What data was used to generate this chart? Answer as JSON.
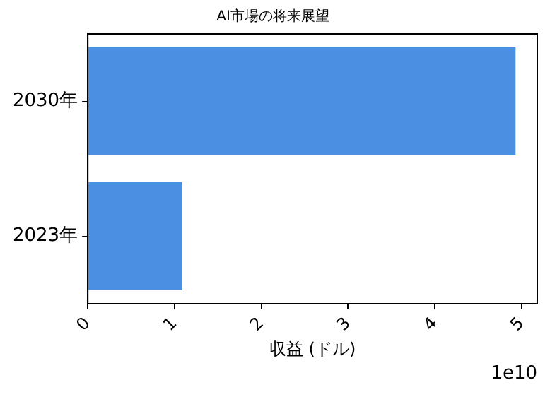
{
  "chart_data": {
    "type": "bar",
    "orientation": "horizontal",
    "title": "AI市場の将来展望",
    "xlabel": "収益 (ドル)",
    "categories": [
      "2030年",
      "2023年"
    ],
    "values": [
      4.93,
      1.09
    ],
    "color": "#4a8fe2",
    "xlim": [
      0,
      5.18
    ],
    "xticks": [
      0,
      1,
      2,
      3,
      4,
      5
    ],
    "annotations": [
      "1e10"
    ],
    "grid": false,
    "legend": false
  }
}
